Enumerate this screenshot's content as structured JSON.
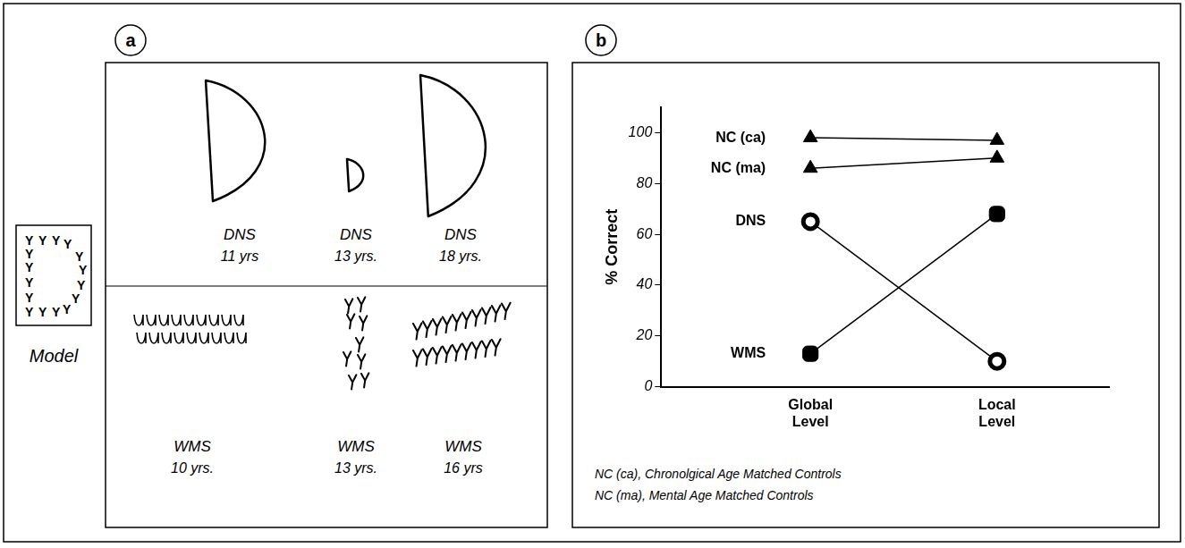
{
  "figure": {
    "panel_a": {
      "letter": "a",
      "model": {
        "glyph": "Y",
        "label": "Model"
      },
      "drawings": [
        {
          "group": "DNS",
          "age": "11 yrs"
        },
        {
          "group": "DNS",
          "age": "13 yrs."
        },
        {
          "group": "DNS",
          "age": "18 yrs."
        },
        {
          "group": "WMS",
          "age": "10 yrs."
        },
        {
          "group": "WMS",
          "age": "13 yrs."
        },
        {
          "group": "WMS",
          "age": "16 yrs"
        }
      ]
    },
    "panel_b": {
      "letter": "b",
      "footnotes": [
        "NC (ca), Chronolgical Age Matched Controls",
        "NC (ma), Mental Age Matched Controls"
      ]
    }
  },
  "chart_data": {
    "type": "line",
    "y_label": "% Correct",
    "categories": [
      "Global Level",
      "Local Level"
    ],
    "ylim": [
      0,
      110
    ],
    "yticks": [
      0,
      20,
      40,
      60,
      80,
      100
    ],
    "grid": false,
    "series": [
      {
        "name": "NC (ca)",
        "color": "#000000",
        "marker": "triangle",
        "values": [
          98,
          97
        ]
      },
      {
        "name": "NC (ma)",
        "color": "#000000",
        "marker": "triangle",
        "values": [
          86,
          90
        ]
      },
      {
        "name": "DNS",
        "color": "#000000",
        "marker": "ring",
        "values": [
          65,
          10
        ]
      },
      {
        "name": "WMS",
        "color": "#000000",
        "marker": "rounded_square",
        "values": [
          13,
          68
        ]
      }
    ]
  }
}
